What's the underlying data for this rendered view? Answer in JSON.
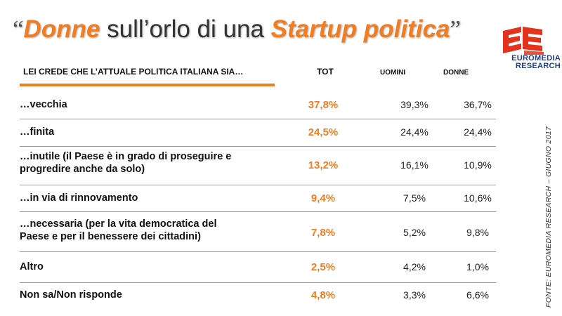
{
  "title": {
    "open_quote": "“",
    "part1": "Donne",
    "part2": " sull’orlo di una ",
    "part3": "Startup politica",
    "close_quote": "”"
  },
  "logo": {
    "line1": "EUROMEDIA",
    "line2": "RESEARCH"
  },
  "source_note": "FONTE: EUROMEDIA RESEARCH – GIUGNO  2017",
  "colors": {
    "accent": "#ef7d22",
    "logo_red": "#e3331c",
    "logo_blue": "#1f3c8b"
  },
  "chart_data": {
    "type": "table",
    "question": "LEI CREDE CHE L’ATTUALE POLITICA ITALIANA SIA…",
    "columns": [
      "TOT",
      "UOMINI",
      "DONNE"
    ],
    "rows": [
      {
        "label_lines": [
          "…vecchia"
        ],
        "values": [
          "37,8%",
          "39,3%",
          "36,7%"
        ]
      },
      {
        "label_lines": [
          "…finita"
        ],
        "values": [
          "24,5%",
          "24,4%",
          "24,4%"
        ]
      },
      {
        "label_lines": [
          "…inutile (il Paese è in grado di proseguire e",
          "progredire anche da solo)"
        ],
        "values": [
          "13,2%",
          "16,1%",
          "10,9%"
        ]
      },
      {
        "label_lines": [
          "…in via di rinnovamento"
        ],
        "values": [
          "9,4%",
          "7,5%",
          "10,6%"
        ]
      },
      {
        "label_lines": [
          "…necessaria (per la vita democratica del",
          "Paese e per il benessere dei cittadini)"
        ],
        "values": [
          "7,8%",
          "5,2%",
          "9,8%"
        ]
      },
      {
        "label_lines": [
          "Altro"
        ],
        "values": [
          "2,5%",
          "4,2%",
          "1,0%"
        ]
      },
      {
        "label_lines": [
          "Non sa/Non risponde"
        ],
        "values": [
          "4,8%",
          "3,3%",
          "6,6%"
        ]
      }
    ]
  }
}
